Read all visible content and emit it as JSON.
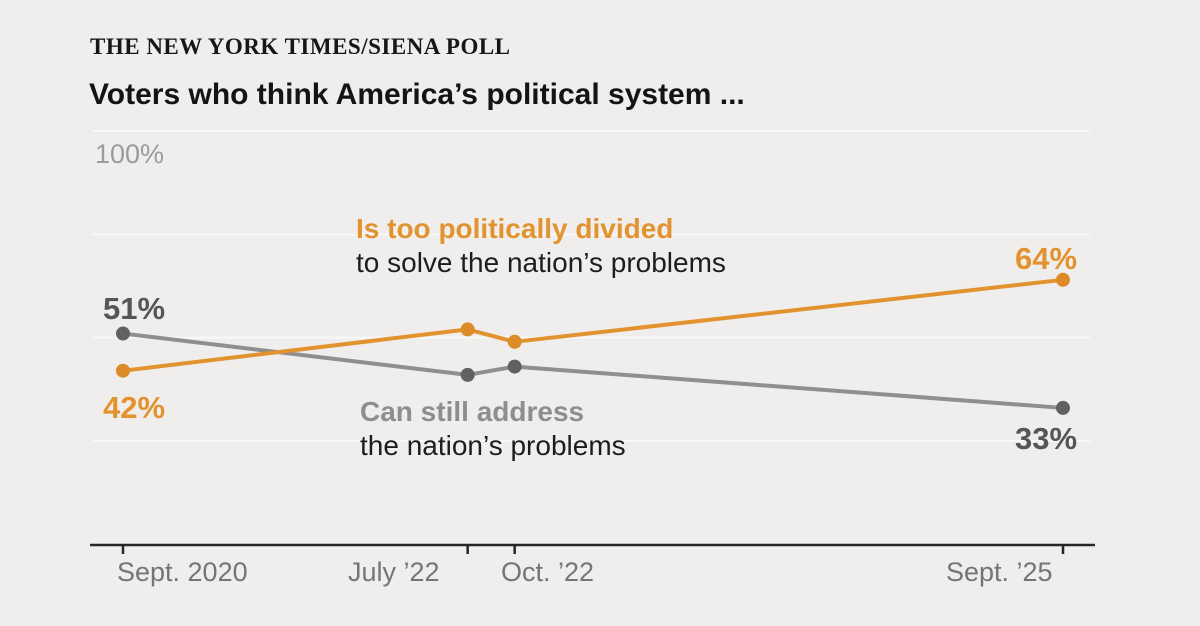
{
  "header": {
    "kicker": "THE NEW YORK TIMES/SIENA POLL",
    "title": "Voters who think America’s political system ..."
  },
  "chart_data": {
    "type": "line",
    "title": "Voters who think America’s political system ...",
    "x": [
      "Sept. 2020",
      "July ’22",
      "Oct. ’22",
      "Sept. ’25"
    ],
    "x_months_from_start": [
      0,
      22,
      25,
      60
    ],
    "series": [
      {
        "name": "Is too politically divided",
        "sublabel": "to solve the nation’s problems",
        "values": [
          42,
          52,
          49,
          64
        ],
        "start_label": "42%",
        "end_label": "64%",
        "color": "#e2932f",
        "dot_color": "#dd8b28"
      },
      {
        "name": "Can still address",
        "sublabel": "the nation’s problems",
        "values": [
          51,
          41,
          43,
          33
        ],
        "start_label": "51%",
        "end_label": "33%",
        "color": "#8f8f8f",
        "dot_color": "#616161"
      }
    ],
    "y_top_label": "100%",
    "gridlines_pct": [
      100,
      75,
      50,
      25
    ],
    "ylim": [
      25,
      100
    ],
    "grid_on": true,
    "legend_position": "inline-annotations",
    "colors": {
      "background": "#efeeec",
      "gridline": "#f8f8f6",
      "axis": "#262626",
      "tick_label": "#757575",
      "y_label": "#9b9b9b",
      "value_dark_gray": "#565656",
      "orange": "#e2932f"
    }
  }
}
